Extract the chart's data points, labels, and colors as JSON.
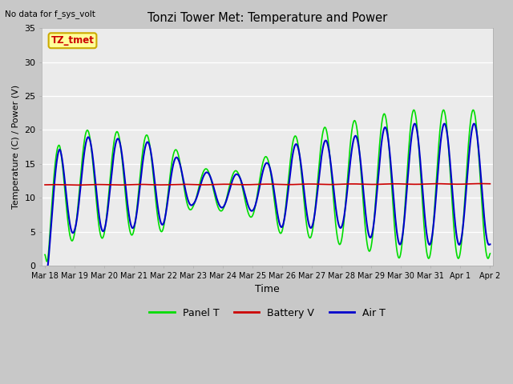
{
  "title": "Tonzi Tower Met: Temperature and Power",
  "xlabel": "Time",
  "ylabel": "Temperature (C) / Power (V)",
  "annotation_text": "No data for f_sys_volt",
  "legend_label": "TZ_tmet",
  "ylim": [
    0,
    35
  ],
  "yticks": [
    0,
    5,
    10,
    15,
    20,
    25,
    30,
    35
  ],
  "xtick_labels": [
    "Mar 18",
    "Mar 19",
    "Mar 20",
    "Mar 21",
    "Mar 22",
    "Mar 23",
    "Mar 24",
    "Mar 25",
    "Mar 26",
    "Mar 27",
    "Mar 28",
    "Mar 29",
    "Mar 30",
    "Mar 31",
    "Apr 1",
    "Apr 2"
  ],
  "panel_color": "#00dd00",
  "air_color": "#0000cc",
  "battery_color": "#cc0000",
  "plot_bg": "#ebebeb",
  "legend_box_color": "#ffff99",
  "legend_box_edge": "#ccaa00",
  "panel_lw": 1.2,
  "air_lw": 1.5,
  "battery_lw": 1.2
}
